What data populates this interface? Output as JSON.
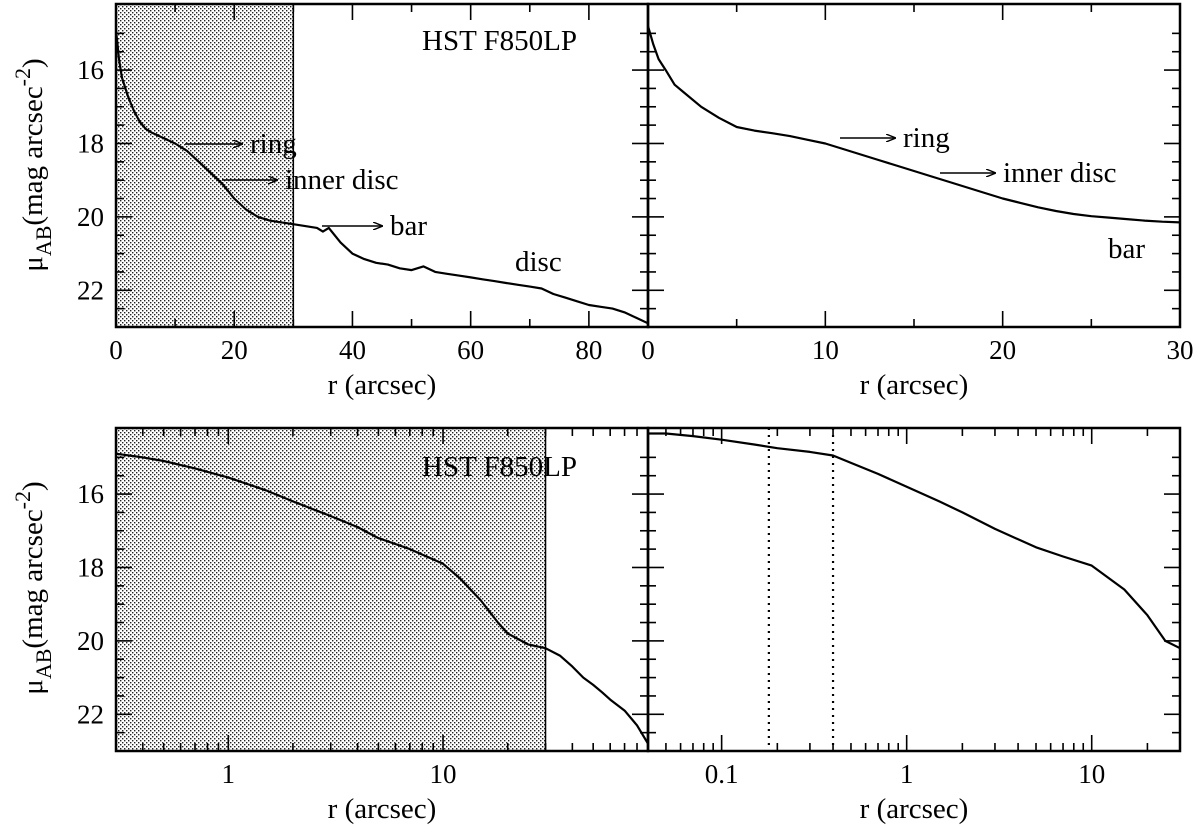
{
  "chart_data": [
    {
      "id": "top-left",
      "type": "line",
      "title": "HST F850LP",
      "xlabel": "r (arcsec)",
      "ylabel": "μ_AB (mag arcsec^-2)",
      "xscale": "linear",
      "xlim": [
        0,
        90
      ],
      "ylim": [
        23,
        14.2
      ],
      "xticks": [
        0,
        20,
        40,
        60,
        80
      ],
      "yticks": [
        16,
        18,
        20,
        22
      ],
      "shaded_region": [
        0,
        30
      ],
      "series": [
        {
          "name": "profile",
          "x": [
            0,
            0.5,
            1,
            2,
            3,
            4,
            5,
            6,
            8,
            10,
            12,
            14,
            16,
            18,
            20,
            22,
            24,
            26,
            28,
            30,
            32,
            34,
            35,
            36,
            38,
            40,
            42,
            44,
            46,
            48,
            50,
            52,
            54,
            56,
            58,
            60,
            62,
            64,
            66,
            68,
            70,
            72,
            74,
            76,
            78,
            80,
            82,
            84,
            86,
            88,
            90
          ],
          "y": [
            14.9,
            15.7,
            16.2,
            16.7,
            17.1,
            17.4,
            17.6,
            17.7,
            17.85,
            18.0,
            18.2,
            18.5,
            18.8,
            19.1,
            19.5,
            19.8,
            20.0,
            20.1,
            20.15,
            20.2,
            20.25,
            20.3,
            20.4,
            20.3,
            20.7,
            21.0,
            21.15,
            21.25,
            21.3,
            21.4,
            21.45,
            21.35,
            21.5,
            21.55,
            21.6,
            21.65,
            21.7,
            21.75,
            21.8,
            21.85,
            21.9,
            21.95,
            22.1,
            22.2,
            22.3,
            22.4,
            22.45,
            22.5,
            22.6,
            22.75,
            22.9
          ]
        }
      ],
      "annotations": [
        {
          "text": "ring",
          "x": 12,
          "y": 18.0,
          "arrow": true
        },
        {
          "text": "inner disc",
          "x": 18,
          "y": 19.0,
          "arrow": true
        },
        {
          "text": "bar",
          "x": 35,
          "y": 20.2,
          "arrow": true
        },
        {
          "text": "disc",
          "x": 68,
          "y": 21.2,
          "arrow": false
        }
      ]
    },
    {
      "id": "top-right",
      "type": "line",
      "title": "",
      "xlabel": "r (arcsec)",
      "ylabel": "",
      "xscale": "linear",
      "xlim": [
        0,
        30
      ],
      "ylim": [
        23,
        14.2
      ],
      "xticks": [
        0,
        10,
        20,
        30
      ],
      "yticks": [
        16,
        18,
        20,
        22
      ],
      "series": [
        {
          "name": "profile",
          "x": [
            0,
            0.3,
            0.6,
            1,
            1.5,
            2,
            3,
            4,
            5,
            6,
            7,
            8,
            9,
            10,
            11,
            12,
            13,
            14,
            15,
            16,
            17,
            18,
            19,
            20,
            21,
            22,
            23,
            24,
            25,
            26,
            27,
            28,
            29,
            30
          ],
          "y": [
            14.8,
            15.3,
            15.7,
            16.0,
            16.4,
            16.6,
            17.0,
            17.3,
            17.55,
            17.65,
            17.72,
            17.8,
            17.9,
            18.0,
            18.15,
            18.3,
            18.45,
            18.6,
            18.75,
            18.9,
            19.05,
            19.2,
            19.35,
            19.5,
            19.62,
            19.74,
            19.84,
            19.92,
            19.98,
            20.02,
            20.06,
            20.1,
            20.13,
            20.15
          ]
        }
      ],
      "annotations": [
        {
          "text": "ring",
          "x": 11,
          "y": 17.9,
          "arrow": true
        },
        {
          "text": "inner disc",
          "x": 16.5,
          "y": 18.7,
          "arrow": true
        },
        {
          "text": "bar",
          "x": 28,
          "y": 20.8,
          "arrow": false
        }
      ]
    },
    {
      "id": "bottom-left",
      "type": "line",
      "title": "HST F850LP",
      "xlabel": "r (arcsec)",
      "ylabel": "μ_AB (mag arcsec^-2)",
      "xscale": "log",
      "xlim": [
        0.3,
        90
      ],
      "ylim": [
        23,
        14.2
      ],
      "xticks": [
        1,
        10
      ],
      "xticklabels": [
        "1",
        "10"
      ],
      "yticks": [
        16,
        18,
        20,
        22
      ],
      "shaded_region": [
        0.3,
        30
      ],
      "series": [
        {
          "name": "profile",
          "x": [
            0.3,
            0.4,
            0.5,
            0.7,
            1,
            1.5,
            2,
            3,
            4,
            5,
            7,
            10,
            12,
            15,
            18,
            20,
            25,
            30,
            35,
            40,
            45,
            50,
            55,
            60,
            70,
            80,
            90
          ],
          "y": [
            14.9,
            15.0,
            15.1,
            15.3,
            15.55,
            15.9,
            16.2,
            16.6,
            16.9,
            17.2,
            17.5,
            17.9,
            18.3,
            18.9,
            19.5,
            19.8,
            20.1,
            20.2,
            20.4,
            20.7,
            21.0,
            21.2,
            21.4,
            21.6,
            21.9,
            22.3,
            22.8
          ]
        }
      ],
      "annotations": []
    },
    {
      "id": "bottom-right",
      "type": "line",
      "title": "",
      "xlabel": "r (arcsec)",
      "ylabel": "",
      "xscale": "log",
      "xlim": [
        0.04,
        30
      ],
      "ylim": [
        23,
        14.2
      ],
      "xticks": [
        0.1,
        1,
        10
      ],
      "xticklabels": [
        "0.1",
        "1",
        "10"
      ],
      "yticks": [
        16,
        18,
        20,
        22
      ],
      "vertical_lines": [
        0.18,
        0.4
      ],
      "series": [
        {
          "name": "profile",
          "x": [
            0.04,
            0.05,
            0.07,
            0.1,
            0.15,
            0.2,
            0.3,
            0.4,
            0.5,
            0.7,
            1,
            1.5,
            2,
            3,
            5,
            7,
            10,
            15,
            20,
            25,
            30
          ],
          "y": [
            14.35,
            14.35,
            14.42,
            14.52,
            14.65,
            14.75,
            14.85,
            14.95,
            15.15,
            15.45,
            15.8,
            16.2,
            16.5,
            16.95,
            17.45,
            17.7,
            17.95,
            18.6,
            19.3,
            20.0,
            20.2
          ]
        }
      ],
      "annotations": []
    }
  ]
}
